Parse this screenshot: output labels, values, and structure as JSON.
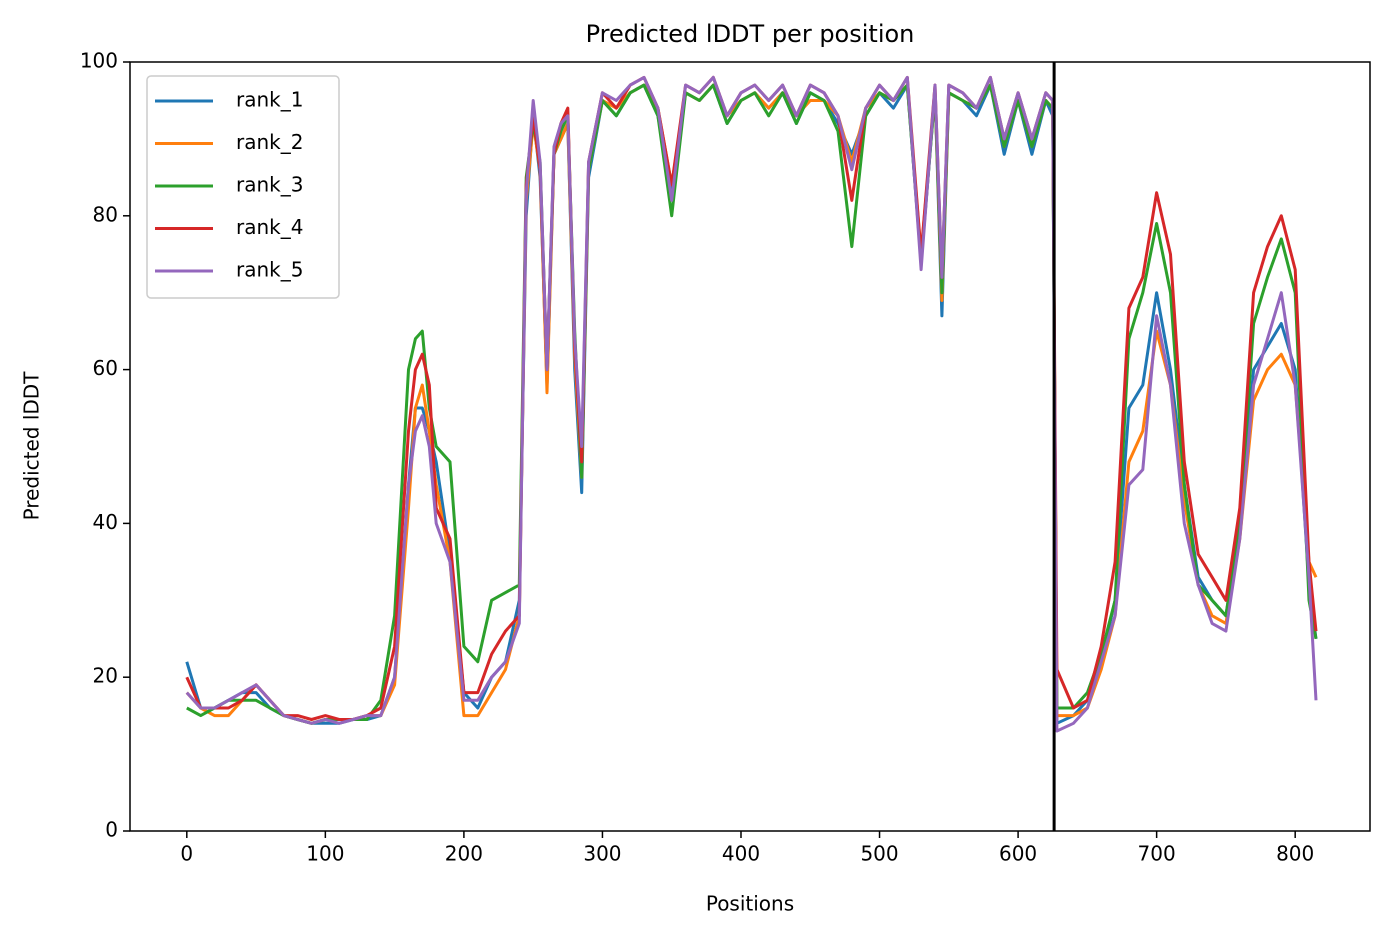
{
  "chart_data": {
    "type": "line",
    "title": "Predicted lDDT per position",
    "x_label": "Positions",
    "y_label": "Predicted lDDT",
    "xlim": [
      -41,
      854
    ],
    "ylim": [
      0,
      100
    ],
    "xticks": [
      0,
      100,
      200,
      300,
      400,
      500,
      600,
      700,
      800
    ],
    "yticks": [
      0,
      20,
      40,
      60,
      80,
      100
    ],
    "legend": "upper left",
    "grid": false,
    "vline": 626,
    "vline_color": "#000000",
    "x": [
      0,
      10,
      20,
      30,
      40,
      50,
      60,
      70,
      80,
      90,
      100,
      110,
      120,
      130,
      140,
      150,
      160,
      165,
      170,
      175,
      180,
      190,
      200,
      210,
      220,
      230,
      240,
      245,
      250,
      255,
      260,
      265,
      270,
      275,
      280,
      285,
      290,
      300,
      310,
      320,
      330,
      340,
      350,
      360,
      370,
      380,
      390,
      400,
      410,
      420,
      430,
      440,
      450,
      460,
      470,
      480,
      490,
      500,
      510,
      520,
      530,
      540,
      545,
      550,
      560,
      570,
      580,
      590,
      600,
      610,
      620,
      625,
      628,
      640,
      650,
      660,
      670,
      680,
      690,
      700,
      710,
      720,
      730,
      740,
      750,
      760,
      770,
      780,
      790,
      800,
      810,
      815
    ],
    "series": [
      {
        "name": "rank_1",
        "color": "#1f77b4",
        "values": [
          22,
          16,
          16,
          17,
          18,
          18,
          16,
          15,
          14.5,
          14,
          14,
          14,
          14.5,
          14.5,
          15,
          20,
          45,
          55,
          55,
          52,
          48,
          36,
          18,
          16,
          20,
          22,
          30,
          80,
          93,
          85,
          58,
          88,
          90,
          92,
          60,
          44,
          85,
          95,
          93,
          96,
          97,
          93,
          83,
          96,
          95,
          97,
          92,
          95,
          96,
          94,
          96,
          92,
          96,
          95,
          92,
          88,
          93,
          96,
          94,
          97,
          74,
          96,
          67,
          96,
          95,
          93,
          97,
          88,
          95,
          88,
          95,
          93,
          14,
          15,
          17,
          22,
          30,
          55,
          58,
          70,
          60,
          45,
          33,
          30,
          28,
          40,
          60,
          63,
          66,
          60,
          32,
          25
        ]
      },
      {
        "name": "rank_2",
        "color": "#ff7f0e",
        "values": [
          18,
          16,
          15,
          15,
          17,
          19,
          17,
          15,
          14.5,
          14,
          14.5,
          14.5,
          14.5,
          15,
          15,
          19,
          42,
          55,
          58,
          52,
          45,
          35,
          15,
          15,
          18,
          21,
          28,
          82,
          92,
          86,
          57,
          88,
          90,
          92,
          62,
          46,
          86,
          95,
          94,
          96,
          97,
          94,
          84,
          96,
          95,
          97,
          93,
          95,
          96,
          94,
          96,
          93,
          95,
          95,
          93,
          87,
          94,
          96,
          95,
          97,
          75,
          96,
          69,
          96,
          95,
          94,
          97,
          89,
          95,
          89,
          95,
          94,
          15,
          15,
          16,
          21,
          28,
          48,
          52,
          65,
          58,
          43,
          32,
          28,
          27,
          38,
          56,
          60,
          62,
          58,
          35,
          33
        ]
      },
      {
        "name": "rank_3",
        "color": "#2ca02c",
        "values": [
          16,
          15,
          16,
          17,
          17,
          17,
          16,
          15,
          14.5,
          14,
          14.5,
          14.5,
          14.5,
          14.5,
          17,
          28,
          60,
          64,
          65,
          55,
          50,
          48,
          24,
          22,
          30,
          31,
          32,
          85,
          92,
          87,
          60,
          88,
          91,
          93,
          65,
          46,
          86,
          95,
          93,
          96,
          97,
          93,
          80,
          96,
          95,
          97,
          92,
          95,
          96,
          93,
          96,
          92,
          96,
          95,
          91,
          76,
          93,
          96,
          95,
          97,
          74,
          96,
          70,
          96,
          95,
          94,
          97,
          89,
          95,
          89,
          95,
          94,
          16,
          16,
          18,
          23,
          30,
          64,
          70,
          79,
          70,
          45,
          32,
          30,
          28,
          40,
          66,
          72,
          77,
          70,
          30,
          25
        ]
      },
      {
        "name": "rank_4",
        "color": "#d62728",
        "values": [
          20,
          16,
          16,
          16,
          17,
          19,
          17,
          15,
          15,
          14.5,
          15,
          14.5,
          14.5,
          15,
          16,
          24,
          52,
          60,
          62,
          58,
          42,
          38,
          18,
          18,
          23,
          26,
          28,
          84,
          93,
          86,
          60,
          88,
          92,
          94,
          63,
          48,
          87,
          96,
          94,
          97,
          98,
          94,
          84,
          97,
          96,
          98,
          93,
          96,
          97,
          95,
          97,
          93,
          97,
          96,
          93,
          82,
          94,
          97,
          95,
          98,
          75,
          97,
          72,
          97,
          96,
          94,
          98,
          90,
          96,
          90,
          96,
          95,
          21,
          16,
          17,
          24,
          35,
          68,
          72,
          83,
          75,
          48,
          36,
          33,
          30,
          42,
          70,
          76,
          80,
          73,
          35,
          26
        ]
      },
      {
        "name": "rank_5",
        "color": "#9467bd",
        "values": [
          18,
          16,
          16,
          17,
          18,
          19,
          17,
          15,
          14.5,
          14,
          14.5,
          14,
          14.5,
          15,
          15,
          20,
          45,
          52,
          54,
          50,
          40,
          35,
          17,
          17,
          20,
          22,
          27,
          83,
          95,
          87,
          60,
          89,
          92,
          93,
          64,
          50,
          87,
          96,
          95,
          97,
          98,
          94,
          82,
          97,
          96,
          98,
          93,
          96,
          97,
          95,
          97,
          93,
          97,
          96,
          93,
          86,
          94,
          97,
          95,
          98,
          73,
          97,
          72,
          97,
          96,
          94,
          98,
          90,
          96,
          90,
          96,
          95,
          13,
          14,
          16,
          22,
          28,
          45,
          47,
          67,
          58,
          40,
          32,
          27,
          26,
          38,
          58,
          64,
          70,
          58,
          33,
          17
        ]
      }
    ]
  }
}
